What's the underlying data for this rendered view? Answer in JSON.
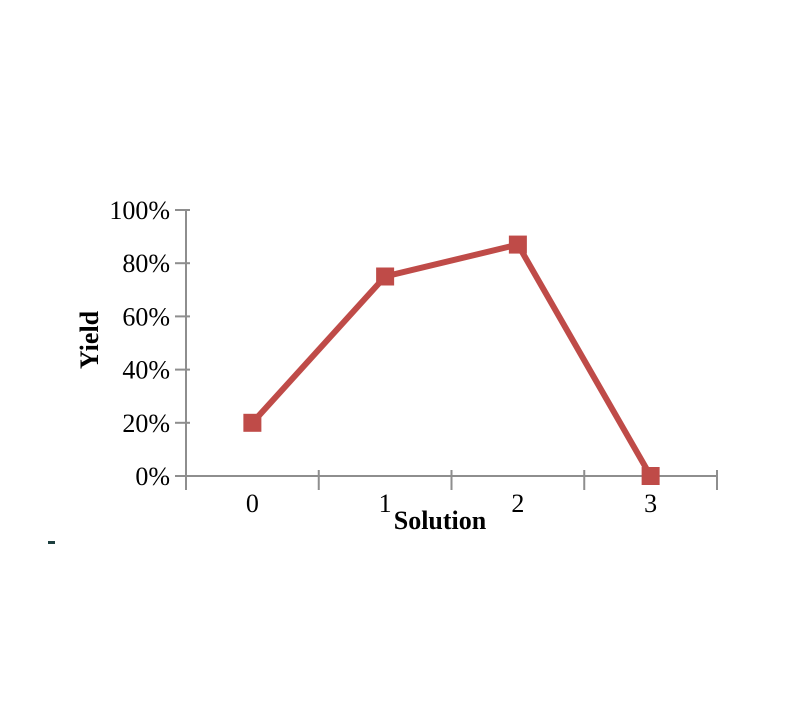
{
  "page": {
    "background_color": "#ffffff"
  },
  "chart_data": {
    "type": "line",
    "title": "",
    "xlabel": "Solution",
    "ylabel": "Yield",
    "categories": [
      "0",
      "1",
      "2",
      "3"
    ],
    "series": [
      {
        "name": "Yield",
        "values": [
          20,
          75,
          87,
          0
        ]
      }
    ],
    "ylim": [
      0,
      100
    ],
    "yticks": [
      0,
      20,
      40,
      60,
      80,
      100
    ],
    "ytick_labels": [
      "0%",
      "20%",
      "40%",
      "60%",
      "80%",
      "100%"
    ],
    "grid": false,
    "legend": "none",
    "marker": "square",
    "line_color": "#BF4B48",
    "axis_color": "#8E8E8E",
    "text_color": "#000000"
  },
  "artifacts": {
    "stray_mark": ""
  }
}
